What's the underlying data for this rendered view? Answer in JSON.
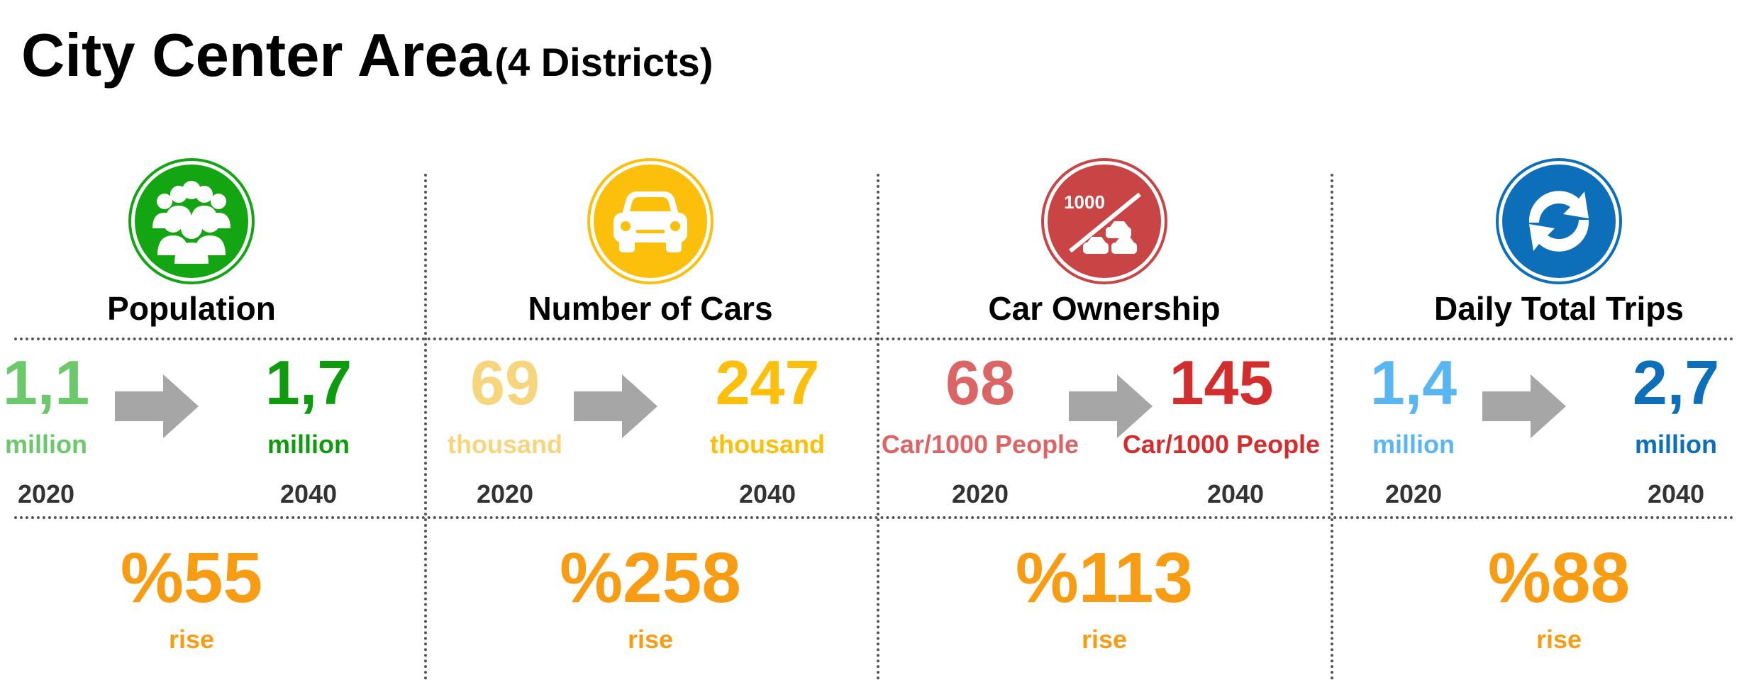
{
  "title": {
    "main": "City Center Area",
    "sub": "(4 Districts)"
  },
  "columns": [
    {
      "heading": "Population",
      "icon": "people-group-icon",
      "icon_color": "#13a512",
      "from": {
        "value": "1,1",
        "unit": "million",
        "year": "2020",
        "color": "#6cc86b"
      },
      "to": {
        "value": "1,7",
        "unit": "million",
        "year": "2040",
        "color": "#0e9c0e"
      },
      "change": {
        "value": "%55",
        "label": "rise"
      }
    },
    {
      "heading": "Number of Cars",
      "icon": "car-icon",
      "icon_color": "#fbbf0c",
      "from": {
        "value": "69",
        "unit": "thousand",
        "year": "2020",
        "color": "#f6d57c"
      },
      "to": {
        "value": "247",
        "unit": "thousand",
        "year": "2040",
        "color": "#fbbf0c"
      },
      "change": {
        "value": "%258",
        "label": "rise"
      }
    },
    {
      "heading": "Car Ownership",
      "icon": "car-ownership-icon",
      "icon_color": "#c94545",
      "icon_text": "1000",
      "from": {
        "value": "68",
        "unit": "Car/1000 People",
        "year": "2020",
        "color": "#db6565"
      },
      "to": {
        "value": "145",
        "unit": "Car/1000 People",
        "year": "2040",
        "color": "#d32e2e"
      },
      "change": {
        "value": "%113",
        "label": "rise"
      }
    },
    {
      "heading": "Daily Total Trips",
      "icon": "exchange-arrows-icon",
      "icon_color": "#0d6fba",
      "from": {
        "value": "1,4",
        "unit": "million",
        "year": "2020",
        "color": "#59b6f2"
      },
      "to": {
        "value": "2,7",
        "unit": "million",
        "year": "2040",
        "color": "#0d6fba"
      },
      "change": {
        "value": "%88",
        "label": "rise"
      }
    }
  ],
  "arrow_color": "#a6a6a6",
  "accent_color": "#f89c14"
}
